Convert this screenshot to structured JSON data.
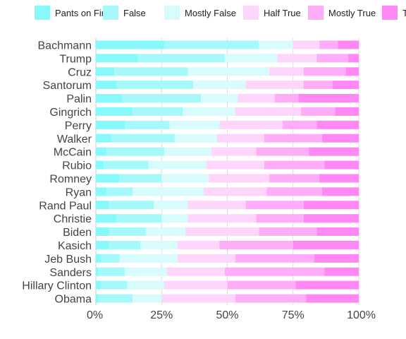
{
  "chart_data": {
    "type": "bar",
    "orientation": "horizontal",
    "stacked": "percent",
    "grid": true,
    "legend_position": "top",
    "xlim": [
      0,
      100
    ],
    "xticks": [
      "0%",
      "25%",
      "50%",
      "75%",
      "100%"
    ],
    "categories": [
      "Bachmann",
      "Trump",
      "Cruz",
      "Santorum",
      "Palin",
      "Gingrich",
      "Perry",
      "Walker",
      "McCain",
      "Rubio",
      "Romney",
      "Ryan",
      "Rand Paul",
      "Christie",
      "Biden",
      "Kasich",
      "Jeb Bush",
      "Sanders",
      "Hillary Clinton",
      "Obama"
    ],
    "series": [
      {
        "name": "Pants on Fire",
        "color": "#88f9fb",
        "values": [
          26,
          16,
          7,
          8,
          10,
          14,
          11,
          6,
          4,
          3,
          9,
          4,
          5,
          8,
          5,
          5,
          2,
          1,
          2,
          1
        ]
      },
      {
        "name": "False",
        "color": "#a6f9fb",
        "values": [
          36,
          33,
          28,
          29,
          30,
          19,
          17,
          24,
          22,
          17,
          16,
          10,
          17,
          17,
          14,
          12,
          7,
          10,
          10,
          13
        ]
      },
      {
        "name": "Mostly False",
        "color": "#d8fbfb",
        "values": [
          13,
          20,
          31,
          20,
          14,
          20,
          19,
          16,
          18,
          22,
          18,
          27,
          13,
          10,
          15,
          14,
          22,
          16,
          14,
          11
        ]
      },
      {
        "name": "Half True",
        "color": "#ffd6fb",
        "values": [
          10,
          15,
          13,
          22,
          14,
          25,
          24,
          18,
          17,
          22,
          23,
          24,
          22,
          26,
          28,
          16,
          22,
          22,
          24,
          28
        ]
      },
      {
        "name": "Mostly True",
        "color": "#ffadf8",
        "values": [
          7,
          12,
          16,
          11,
          9,
          13,
          13,
          22,
          20,
          23,
          19,
          21,
          22,
          18,
          22,
          28,
          30,
          38,
          26,
          27
        ]
      },
      {
        "name": "True",
        "color": "#ff88f5",
        "values": [
          8,
          4,
          5,
          10,
          23,
          9,
          16,
          14,
          19,
          13,
          15,
          14,
          21,
          21,
          16,
          25,
          17,
          13,
          24,
          20
        ]
      }
    ]
  }
}
